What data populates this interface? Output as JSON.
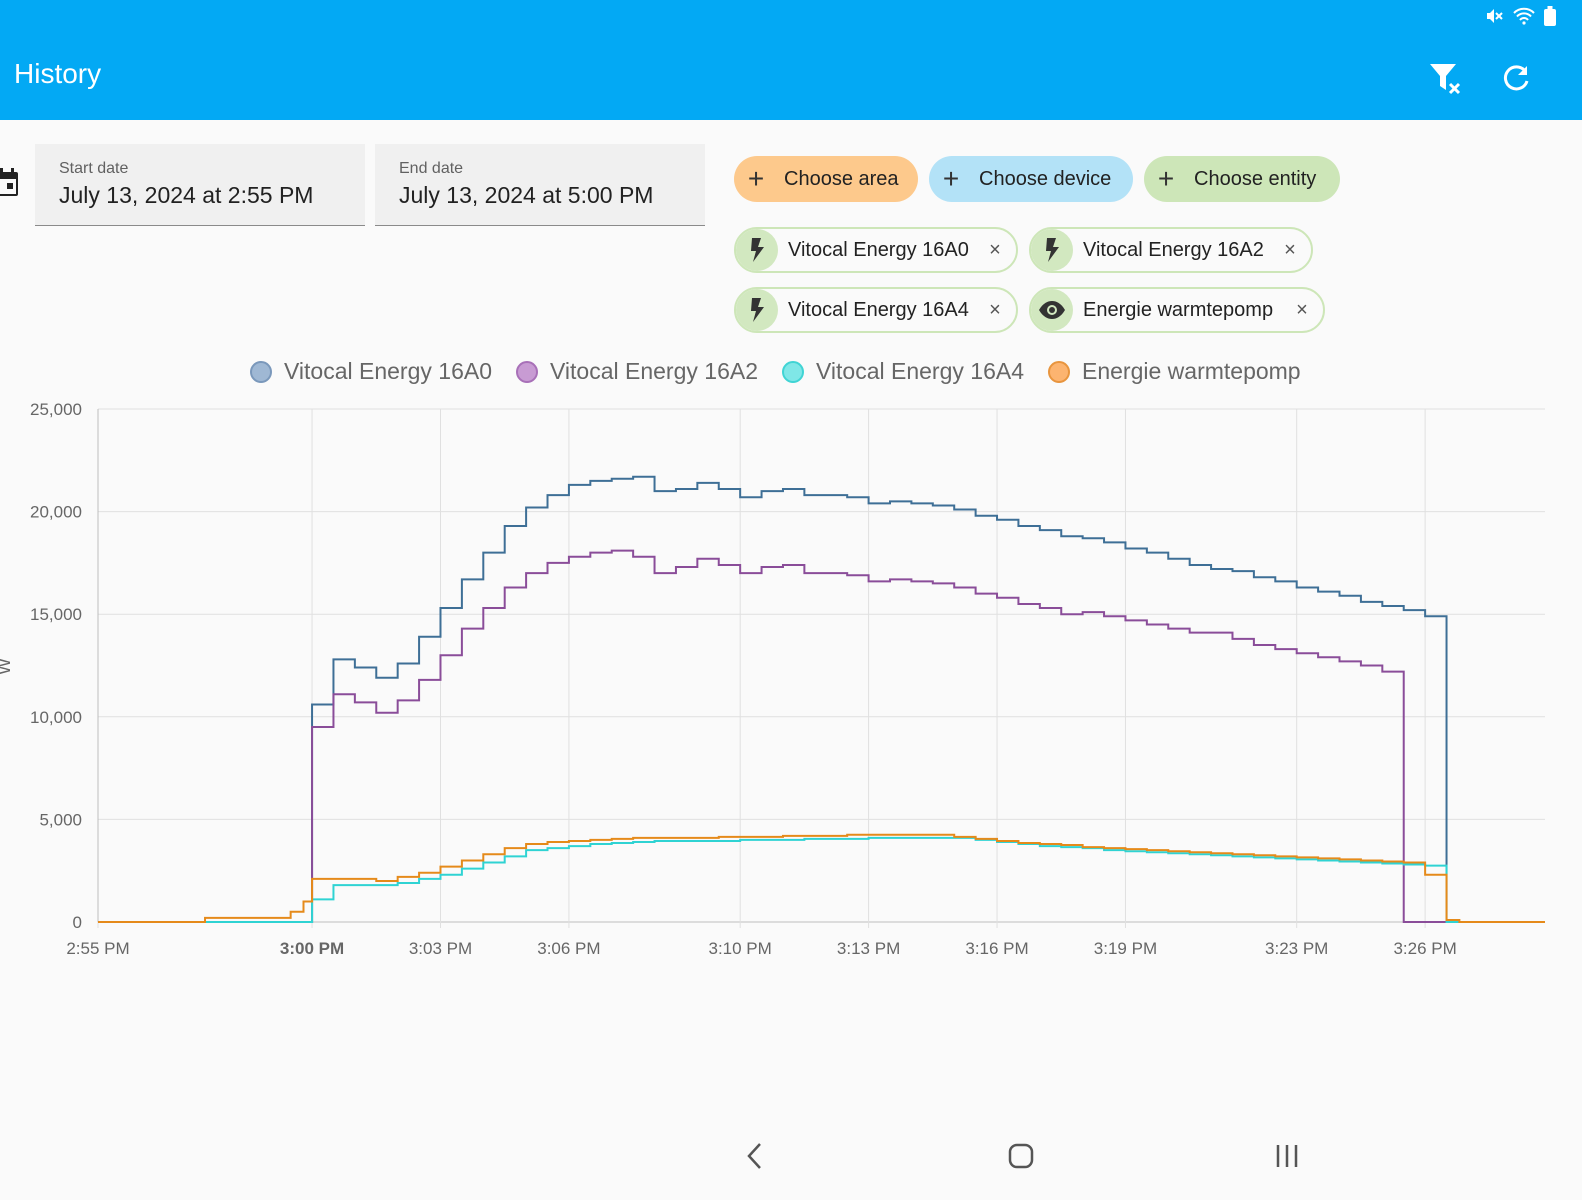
{
  "appbar": {
    "title": "History",
    "clear_filter_icon": "filter-remove-icon",
    "refresh_icon": "refresh-icon",
    "color": "#03a9f4"
  },
  "status_bar": {
    "icons": [
      "mute-icon",
      "wifi-icon",
      "battery-icon"
    ]
  },
  "dates": {
    "start": {
      "label": "Start date",
      "value": "July 13, 2024 at 2:55 PM"
    },
    "end": {
      "label": "End date",
      "value": "July 13, 2024 at 5:00 PM"
    }
  },
  "pickers": [
    {
      "label": "Choose area",
      "color": "#fdc98c"
    },
    {
      "label": "Choose device",
      "color": "#b3e2f7"
    },
    {
      "label": "Choose entity",
      "color": "#cde6b8"
    }
  ],
  "chips": [
    {
      "label": "Vitocal Energy 16A0",
      "icon": "lightning-icon"
    },
    {
      "label": "Vitocal Energy 16A2",
      "icon": "lightning-icon"
    },
    {
      "label": "Vitocal Energy 16A4",
      "icon": "lightning-icon"
    },
    {
      "label": "Energie warmtepomp",
      "icon": "eye-icon"
    }
  ],
  "navbar": {
    "icons": [
      "back-icon",
      "home-icon",
      "recents-icon"
    ]
  },
  "chart_data": {
    "type": "line",
    "step": true,
    "ylabel": "W",
    "ylim": [
      0,
      25000
    ],
    "yticks": [
      "0",
      "5,000",
      "10,000",
      "15,000",
      "20,000",
      "25,000"
    ],
    "xticks": [
      "2:55 PM",
      "3:00 PM",
      "3:03 PM",
      "3:06 PM",
      "3:10 PM",
      "3:13 PM",
      "3:16 PM",
      "3:19 PM",
      "3:23 PM",
      "3:26 PM"
    ],
    "xlim_minutes_after_2_55": [
      0,
      33.8
    ],
    "legend_position": "top",
    "grid": true,
    "series": [
      {
        "name": "Vitocal Energy 16A0",
        "color": "#3e6f96",
        "legend_color": "#9fb8d4",
        "x": [
          0,
          5,
          5.5,
          6,
          6.5,
          7,
          7.5,
          8,
          8.5,
          9,
          9.5,
          10,
          10.5,
          11,
          11.5,
          12,
          12.5,
          13,
          13.5,
          14,
          14.5,
          15,
          15.5,
          16,
          16.5,
          17,
          17.5,
          18,
          18.5,
          19,
          19.5,
          20,
          20.5,
          21,
          21.5,
          22,
          22.5,
          23,
          23.5,
          24,
          24.5,
          25,
          25.5,
          26,
          26.5,
          27,
          27.5,
          28,
          28.5,
          29,
          29.5,
          30,
          30.5,
          31,
          31.5,
          32,
          32.5,
          33
        ],
        "y": [
          0,
          10600,
          12800,
          12400,
          11900,
          12600,
          13900,
          15300,
          16700,
          18000,
          19300,
          20200,
          20800,
          21300,
          21500,
          21600,
          21700,
          21000,
          21100,
          21400,
          21100,
          20700,
          21000,
          21100,
          20800,
          20800,
          20700,
          20400,
          20500,
          20400,
          20300,
          20100,
          19800,
          19600,
          19300,
          19100,
          18800,
          18700,
          18500,
          18200,
          18000,
          17700,
          17400,
          17200,
          17100,
          16800,
          16600,
          16300,
          16100,
          15900,
          15600,
          15400,
          15200,
          14900,
          0,
          0,
          0,
          0
        ]
      },
      {
        "name": "Vitocal Energy 16A2",
        "color": "#8a4d99",
        "legend_color": "#c89bd3",
        "x": [
          0,
          5,
          5.5,
          6,
          6.5,
          7,
          7.5,
          8,
          8.5,
          9,
          9.5,
          10,
          10.5,
          11,
          11.5,
          12,
          12.5,
          13,
          13.5,
          14,
          14.5,
          15,
          15.5,
          16,
          16.5,
          17,
          17.5,
          18,
          18.5,
          19,
          19.5,
          20,
          20.5,
          21,
          21.5,
          22,
          22.5,
          23,
          23.5,
          24,
          24.5,
          25,
          25.5,
          26,
          26.5,
          27,
          27.5,
          28,
          28.5,
          29,
          29.5,
          30,
          30.5,
          31,
          31.5,
          32,
          32.5,
          33
        ],
        "y": [
          0,
          9500,
          11100,
          10700,
          10200,
          10800,
          11800,
          13000,
          14300,
          15300,
          16300,
          17000,
          17500,
          17800,
          18000,
          18100,
          17800,
          17000,
          17300,
          17700,
          17400,
          17000,
          17300,
          17400,
          17000,
          17000,
          16900,
          16600,
          16700,
          16600,
          16500,
          16300,
          16000,
          15800,
          15500,
          15300,
          15000,
          15100,
          14900,
          14700,
          14500,
          14300,
          14100,
          14100,
          13800,
          13500,
          13300,
          13100,
          12900,
          12700,
          12500,
          12200,
          0,
          0,
          0,
          0,
          0,
          0
        ]
      },
      {
        "name": "Vitocal Energy 16A4",
        "color": "#2fd3d3",
        "legend_color": "#7fe7e7",
        "x": [
          0,
          5,
          5.5,
          6,
          6.5,
          7,
          7.5,
          8,
          8.5,
          9,
          9.5,
          10,
          10.5,
          11,
          11.5,
          12,
          12.5,
          13,
          13.5,
          14,
          14.5,
          15,
          15.5,
          16,
          16.5,
          17,
          17.5,
          18,
          18.5,
          19,
          19.5,
          20,
          20.5,
          21,
          21.5,
          22,
          22.5,
          23,
          23.5,
          24,
          24.5,
          25,
          25.5,
          26,
          26.5,
          27,
          27.5,
          28,
          28.5,
          29,
          29.5,
          30,
          30.5,
          31,
          31.5,
          32,
          32.5,
          33
        ],
        "y": [
          0,
          1100,
          1800,
          1800,
          1800,
          1900,
          2100,
          2300,
          2600,
          2900,
          3200,
          3500,
          3600,
          3700,
          3800,
          3850,
          3900,
          3950,
          3950,
          3950,
          3950,
          4000,
          4000,
          4000,
          4050,
          4050,
          4050,
          4100,
          4100,
          4100,
          4100,
          4100,
          4000,
          3900,
          3800,
          3700,
          3650,
          3600,
          3500,
          3450,
          3400,
          3350,
          3300,
          3250,
          3200,
          3150,
          3100,
          3050,
          3000,
          2950,
          2900,
          2850,
          2800,
          2750,
          0,
          0,
          0,
          0
        ]
      },
      {
        "name": "Energie warmtepomp",
        "color": "#e58a1a",
        "legend_color": "#fcb470",
        "x": [
          0,
          2.5,
          4.5,
          4.8,
          5,
          6.5,
          7,
          7.5,
          8,
          8.5,
          9,
          9.5,
          10,
          10.5,
          11,
          11.5,
          12,
          12.5,
          13,
          13.5,
          14,
          14.5,
          15,
          15.5,
          16,
          16.5,
          17,
          17.5,
          18,
          18.5,
          19,
          19.5,
          20,
          20.5,
          21,
          21.5,
          22,
          22.5,
          23,
          23.5,
          24,
          24.5,
          25,
          25.5,
          26,
          26.5,
          27,
          27.5,
          28,
          28.5,
          29,
          29.5,
          30,
          30.5,
          31,
          31.5,
          31.8,
          32.1
        ],
        "y": [
          0,
          200,
          500,
          1000,
          2100,
          2000,
          2200,
          2400,
          2700,
          3000,
          3300,
          3600,
          3800,
          3900,
          3950,
          4000,
          4050,
          4100,
          4100,
          4100,
          4100,
          4150,
          4150,
          4150,
          4200,
          4200,
          4200,
          4250,
          4250,
          4250,
          4250,
          4250,
          4150,
          4050,
          3950,
          3850,
          3800,
          3750,
          3650,
          3600,
          3550,
          3500,
          3450,
          3400,
          3350,
          3300,
          3250,
          3200,
          3150,
          3100,
          3050,
          3000,
          2950,
          2900,
          2300,
          100,
          0,
          0
        ]
      }
    ]
  }
}
